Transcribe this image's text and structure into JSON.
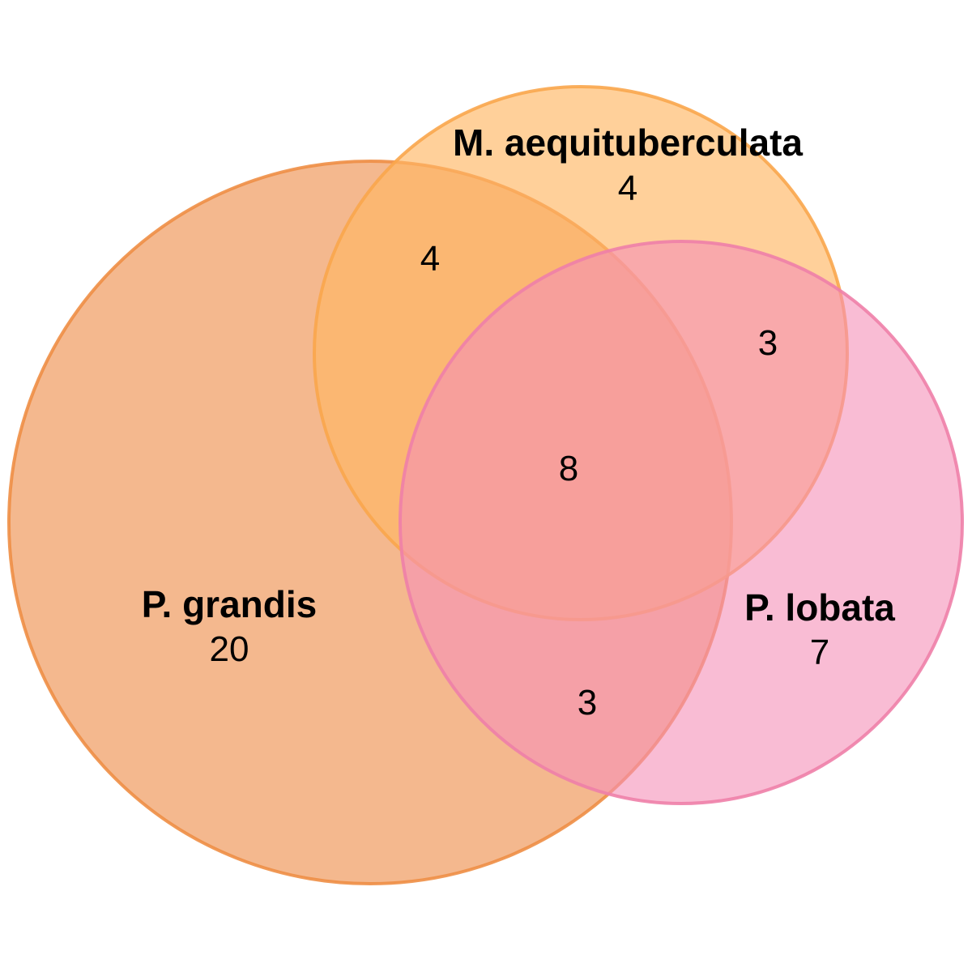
{
  "sets": [
    {
      "id": "grandis",
      "label": "P. grandis",
      "fill": "#F0A068",
      "stroke": "#EE8E45"
    },
    {
      "id": "aequituberculata",
      "label": "M. aequituberculata",
      "fill": "#FFB764",
      "stroke": "#F9A64C"
    },
    {
      "id": "lobata",
      "label": "P. lobata",
      "fill": "#F58FB8",
      "stroke": "#EE7FA9"
    }
  ],
  "regions": {
    "grandis_only": "20",
    "aequituberculata_only": "4",
    "lobata_only": "7",
    "grandis_aequituberculata": "4",
    "aequituberculata_lobata": "3",
    "grandis_lobata": "3",
    "all_three": "8"
  }
}
